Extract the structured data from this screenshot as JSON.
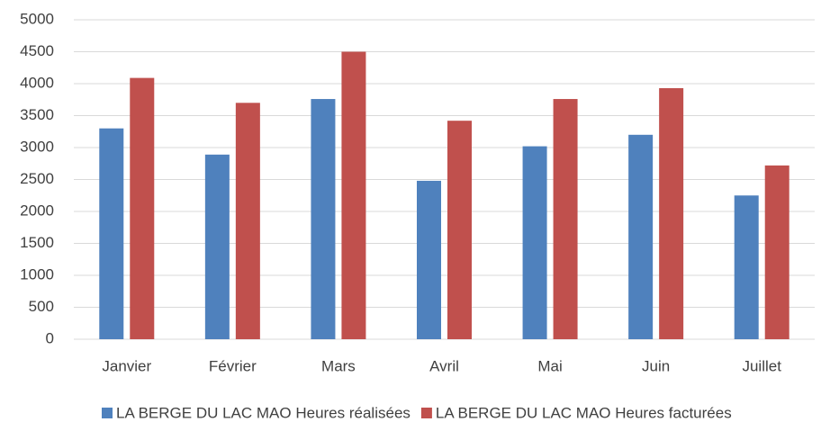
{
  "chart_data": {
    "type": "bar",
    "categories": [
      "Janvier",
      "Février",
      "Mars",
      "Avril",
      "Mai",
      "Juin",
      "Juillet"
    ],
    "series": [
      {
        "name": "LA BERGE DU LAC MAO Heures réalisées",
        "color": "#4f81bd",
        "values": [
          3300,
          2890,
          3760,
          2480,
          3020,
          3200,
          2250
        ]
      },
      {
        "name": "LA BERGE DU LAC MAO Heures facturées",
        "color": "#c0504d",
        "values": [
          4090,
          3700,
          4500,
          3420,
          3760,
          3930,
          2720
        ]
      }
    ],
    "ylim": [
      0,
      5000
    ],
    "yticks": [
      0,
      500,
      1000,
      1500,
      2000,
      2500,
      3000,
      3500,
      4000,
      4500,
      5000
    ],
    "grid": true,
    "legend": "bottom"
  }
}
